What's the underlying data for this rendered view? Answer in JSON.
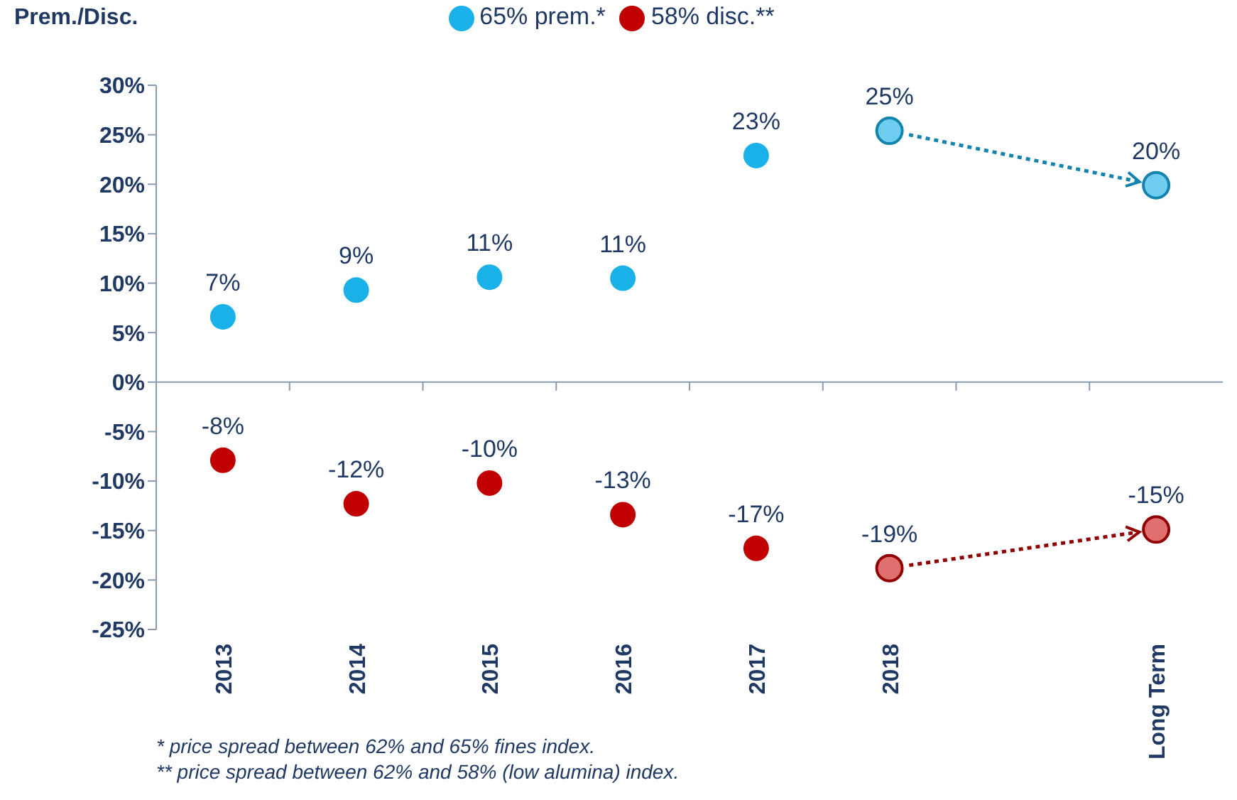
{
  "chart_data": {
    "type": "scatter",
    "ylabel": "Prem./Disc.",
    "categories": [
      "2013",
      "2014",
      "2015",
      "2016",
      "2017",
      "2018",
      null,
      "Long Term"
    ],
    "series": [
      {
        "name": "65% prem.*",
        "color": "#1ab0e8",
        "colors": [
          "#1ab0e8",
          "#1ab0e8",
          "#1ab0e8",
          "#1ab0e8",
          "#1ab0e8",
          "#6fcdf0",
          null,
          "#6fcdf0"
        ],
        "values": [
          6.6,
          9.3,
          10.6,
          10.5,
          22.9,
          25.4,
          null,
          19.9
        ],
        "value_labels": [
          "7%",
          "9%",
          "11%",
          "11%",
          "23%",
          "25%",
          null,
          "20%"
        ]
      },
      {
        "name": "58% disc.**",
        "color": "#c00000",
        "colors": [
          "#c00000",
          "#c00000",
          "#c00000",
          "#c00000",
          "#c00000",
          "#e07070",
          null,
          "#e07070"
        ],
        "values": [
          -7.9,
          -12.3,
          -10.2,
          -13.4,
          -16.8,
          -18.8,
          null,
          -14.9
        ],
        "value_labels": [
          "-8%",
          "-12%",
          "-10%",
          "-13%",
          "-17%",
          "-19%",
          null,
          "-15%"
        ]
      }
    ],
    "ylim": [
      -25,
      30
    ],
    "yticks": [
      {
        "value": -25,
        "label": "-25%"
      },
      {
        "value": -20,
        "label": "-20%"
      },
      {
        "value": -15,
        "label": "-15%"
      },
      {
        "value": -10,
        "label": "-10%"
      },
      {
        "value": -5,
        "label": "-5%"
      },
      {
        "value": 0,
        "label": "0%"
      },
      {
        "value": 5,
        "label": "5%"
      },
      {
        "value": 10,
        "label": "10%"
      },
      {
        "value": 15,
        "label": "15%"
      },
      {
        "value": 20,
        "label": "20%"
      },
      {
        "value": 25,
        "label": "25%"
      },
      {
        "value": 30,
        "label": "30%"
      }
    ],
    "ref_lines": [
      {
        "axis": "y",
        "value": 0,
        "color": "#8a9bb0"
      }
    ],
    "grid": false,
    "legend": "top",
    "marker": "circle",
    "annotations": [
      "* price spread between 62% and 65% fines index.",
      "** price spread between 62% and 58% (low alumina) index."
    ]
  }
}
